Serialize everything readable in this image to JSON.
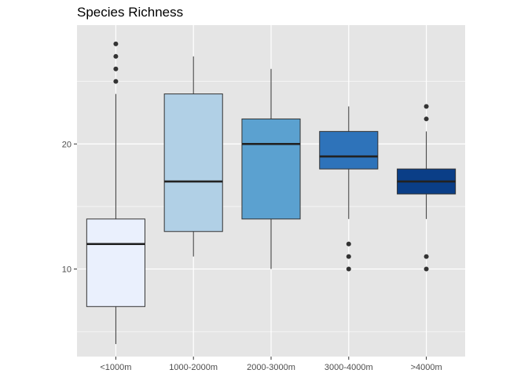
{
  "chart_data": {
    "type": "boxplot",
    "title": "Species Richness",
    "xlabel": "",
    "ylabel": "",
    "ylim": [
      3,
      29.5
    ],
    "yticks": [
      10,
      20
    ],
    "grid": true,
    "legend": "none",
    "colors": {
      "panel": "#e5e5e5",
      "grid_major": "#ffffff",
      "outline": "#333333",
      "median": "#222222"
    },
    "categories": [
      "<1000m",
      "1000-2000m",
      "2000-3000m",
      "3000-4000m",
      ">4000m"
    ],
    "boxes": [
      {
        "category": "<1000m",
        "fill": "#eaf0fd",
        "whisker_low": 4,
        "q1": 7,
        "median": 12,
        "q3": 14,
        "whisker_high": 24,
        "outliers": [
          25,
          26,
          27,
          28
        ]
      },
      {
        "category": "1000-2000m",
        "fill": "#b1d0e6",
        "whisker_low": 11,
        "q1": 13,
        "median": 17,
        "q3": 24,
        "whisker_high": 27,
        "outliers": []
      },
      {
        "category": "2000-3000m",
        "fill": "#5ba1d0",
        "whisker_low": 10,
        "q1": 14,
        "median": 20,
        "q3": 22,
        "whisker_high": 26,
        "outliers": []
      },
      {
        "category": "3000-4000m",
        "fill": "#2e73ba",
        "whisker_low": 14,
        "q1": 18,
        "median": 19,
        "q3": 21,
        "whisker_high": 23,
        "outliers": [
          10,
          11,
          12
        ]
      },
      {
        "category": ">4000m",
        "fill": "#0a3e87",
        "whisker_low": 14,
        "q1": 16,
        "median": 17,
        "q3": 18,
        "whisker_high": 21,
        "outliers": [
          10,
          11,
          22,
          23
        ]
      }
    ]
  }
}
